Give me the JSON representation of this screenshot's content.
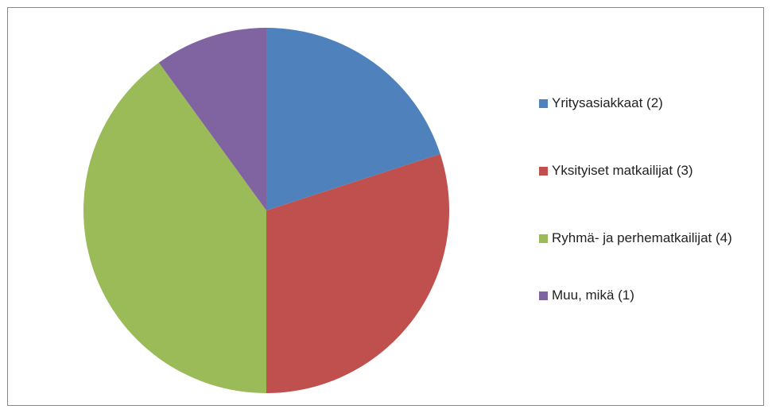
{
  "chart_data": {
    "type": "pie",
    "categories": [
      "Yritysasiakkaat (2)",
      "Yksityiset matkailijat (3)",
      "Ryhmä- ja perhematkailijat (4)",
      "Muu, mikä (1)"
    ],
    "values": [
      2,
      3,
      4,
      1
    ],
    "colors": [
      "#4f81bd",
      "#c0504d",
      "#9bbb59",
      "#8064a2"
    ],
    "legend": "right"
  }
}
